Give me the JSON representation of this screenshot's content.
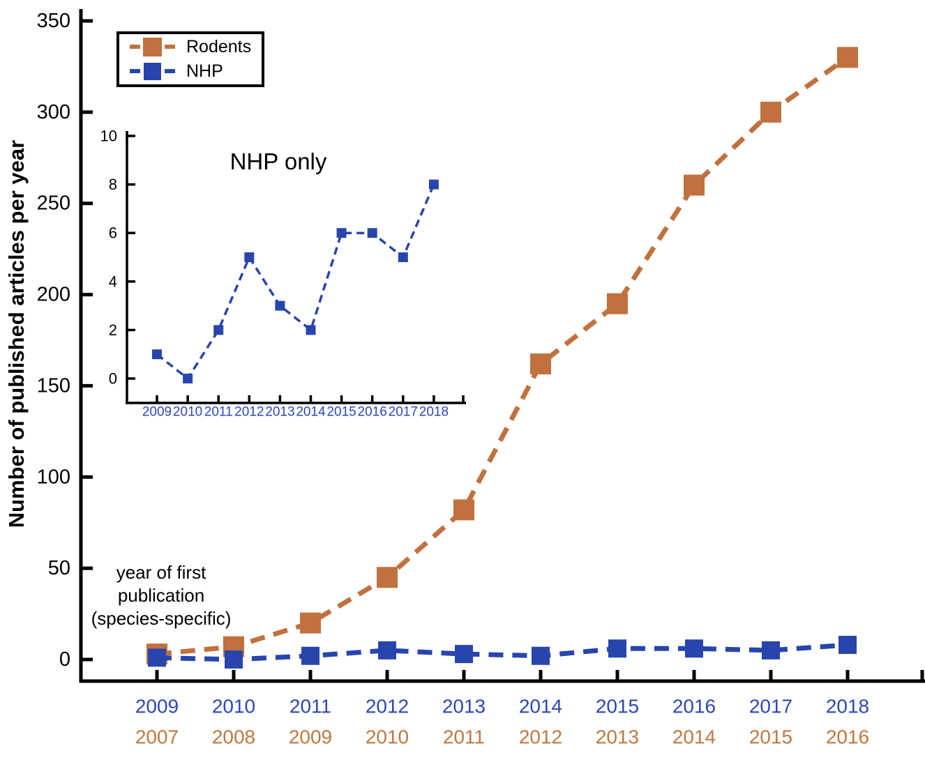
{
  "figure": {
    "y_axis_label": "Number of published articles per year",
    "annotation": {
      "line1": "year of first",
      "line2": "publication",
      "line3": "(species-specific)"
    },
    "legend": {
      "items": [
        {
          "label": "Rodents",
          "color": "#c1713e"
        },
        {
          "label": "NHP",
          "color": "#2845ae"
        }
      ]
    }
  },
  "chart_data": [
    {
      "type": "line",
      "title": "",
      "ylabel": "Number of published articles per year",
      "ylim": [
        0,
        350
      ],
      "yticks": [
        0,
        50,
        100,
        150,
        200,
        250,
        300,
        350
      ],
      "grid": false,
      "legend_position": "upper-left",
      "annotation": "year of first publication (species-specific)",
      "x_tick_rows": [
        {
          "name": "nhp-publication-years",
          "color": "#2c46bb",
          "labels": [
            "2009",
            "2010",
            "2011",
            "2012",
            "2013",
            "2014",
            "2015",
            "2016",
            "2017",
            "2018"
          ]
        },
        {
          "name": "rodent-publication-years",
          "color": "#c0773f",
          "labels": [
            "2007",
            "2008",
            "2009",
            "2010",
            "2011",
            "2012",
            "2013",
            "2014",
            "2015",
            "2016"
          ]
        }
      ],
      "series": [
        {
          "name": "Rodents",
          "color": "#c1713e",
          "line_style": "dashed",
          "marker": "square",
          "values": [
            3,
            7,
            20,
            45,
            82,
            162,
            195,
            260,
            300,
            330
          ]
        },
        {
          "name": "NHP",
          "color": "#2845ae",
          "line_style": "dashed",
          "marker": "square",
          "values": [
            1,
            0,
            2,
            5,
            3,
            2,
            6,
            6,
            5,
            8
          ]
        }
      ]
    },
    {
      "type": "line",
      "title": "NHP only",
      "ylim": [
        0,
        10
      ],
      "yticks": [
        0,
        2,
        4,
        6,
        8,
        10
      ],
      "grid": false,
      "x_tick_color": "#2c46bb",
      "x": [
        "2009",
        "2010",
        "2011",
        "2012",
        "2013",
        "2014",
        "2015",
        "2016",
        "2017",
        "2018"
      ],
      "series": [
        {
          "name": "NHP",
          "color": "#2845ae",
          "line_style": "dashed",
          "marker": "square",
          "values": [
            1,
            0,
            2,
            5,
            3,
            2,
            6,
            6,
            5,
            8
          ]
        }
      ]
    }
  ]
}
